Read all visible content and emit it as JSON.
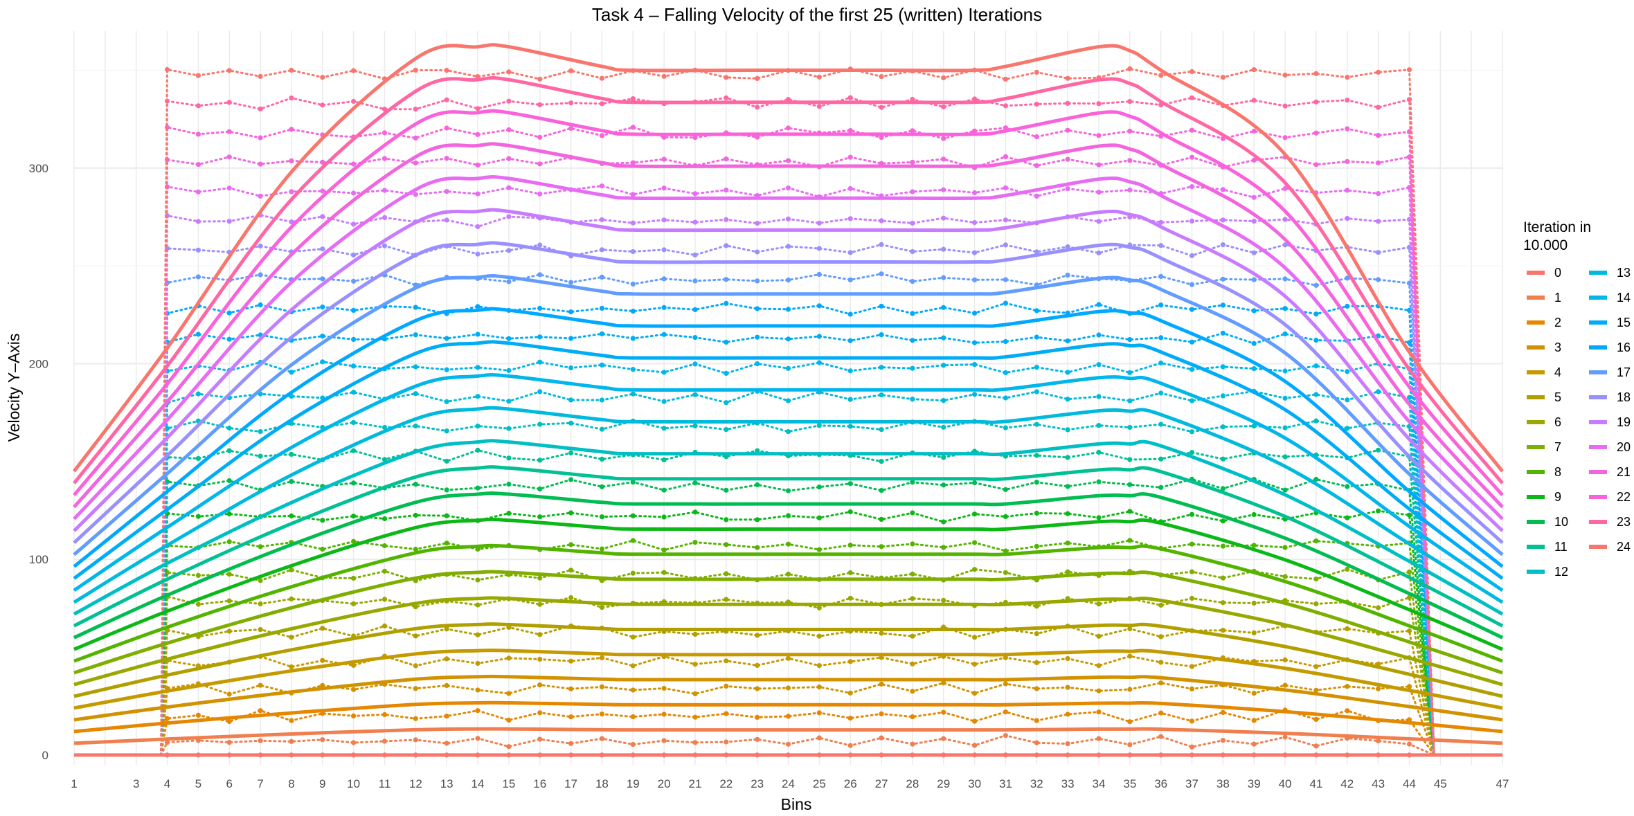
{
  "chart_data": {
    "type": "line",
    "title": "Task 4 – Falling Velocity of the first 25 (written) Iterations",
    "xlabel": "Bins",
    "ylabel": "Velocity Y–Axis",
    "x_ticks": [
      1,
      3,
      4,
      5,
      6,
      7,
      8,
      9,
      10,
      11,
      12,
      13,
      14,
      15,
      16,
      17,
      18,
      19,
      20,
      21,
      22,
      23,
      24,
      25,
      26,
      27,
      28,
      29,
      30,
      31,
      32,
      33,
      34,
      35,
      36,
      37,
      38,
      39,
      40,
      41,
      42,
      43,
      44,
      45,
      47
    ],
    "y_ticks": [
      0,
      100,
      200,
      300
    ],
    "xlim": [
      1,
      47
    ],
    "ylim": [
      -5,
      370
    ],
    "grid": true,
    "legend": {
      "title_lines": [
        "Iteration in",
        "10.000"
      ],
      "position": "right",
      "entries": [
        "0",
        "1",
        "2",
        "3",
        "4",
        "5",
        "6",
        "7",
        "8",
        "9",
        "10",
        "11",
        "12",
        "13",
        "14",
        "15",
        "16",
        "17",
        "18",
        "19",
        "20",
        "21",
        "22",
        "23",
        "24"
      ]
    },
    "colors": [
      "#F8766D",
      "#F07E4F",
      "#E58700",
      "#D29200",
      "#C49A00",
      "#B19F00",
      "#99A800",
      "#7FAE00",
      "#53B400",
      "#0BB816",
      "#00BC51",
      "#00C094",
      "#00BFC4",
      "#00BADE",
      "#00B6EB",
      "#00ACF5",
      "#00A9FF",
      "#619CFF",
      "#9990FF",
      "#C77CFF",
      "#E76BF3",
      "#F265DE",
      "#FA62DB",
      "#FF67A4",
      "#F8766D"
    ],
    "series_style": {
      "smooth": "solid thick line, endpoints at bins 1 and 47 reach approx. 6*i (iteration i)",
      "written": "dotted line with points, bins 4–44 only"
    },
    "smooth_series": {
      "x": [
        1,
        4,
        8,
        12,
        14,
        15,
        18,
        19,
        23,
        27,
        30,
        31,
        34,
        35,
        36,
        40,
        44,
        47
      ],
      "values_by_iteration": {
        "0": [
          0,
          0,
          0,
          0,
          0,
          0,
          0,
          0,
          0,
          0,
          0,
          0,
          0,
          0,
          0,
          0,
          0,
          0
        ],
        "12": [
          72,
          98,
          129,
          155,
          160,
          160,
          155,
          154,
          154,
          154,
          154,
          154,
          159,
          159,
          158,
          133,
          99,
          72
        ],
        "24": [
          145,
          208,
          298,
          356,
          362,
          362,
          352,
          350,
          350,
          350,
          350,
          352,
          362,
          360,
          350,
          307,
          206,
          145
        ]
      }
    },
    "written_series": {
      "x_range": [
        4,
        44
      ],
      "plateau_by_iteration": [
        0,
        7,
        20,
        34,
        48,
        63,
        78,
        92,
        107,
        122,
        138,
        153,
        168,
        183,
        198,
        213,
        228,
        243,
        258,
        273,
        288,
        303,
        318,
        333,
        348
      ]
    }
  }
}
